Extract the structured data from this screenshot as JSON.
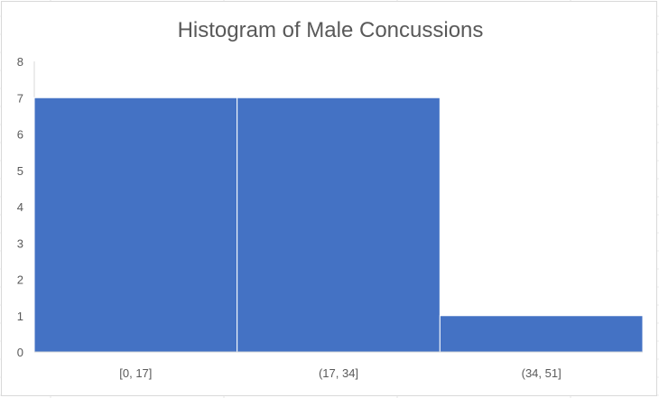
{
  "chart_data": {
    "type": "bar",
    "title": "Histogram of Male Concussions",
    "categories": [
      "[0, 17]",
      "(17, 34]",
      "(34, 51]"
    ],
    "values": [
      7,
      7,
      1
    ],
    "xlabel": "",
    "ylabel": "",
    "ylim": [
      0,
      8
    ],
    "yticks": [
      "0",
      "1",
      "2",
      "3",
      "4",
      "5",
      "6",
      "7",
      "8"
    ],
    "grid": false,
    "legend": "none",
    "bar_color": "#4472C4",
    "bar_gap": 0
  }
}
